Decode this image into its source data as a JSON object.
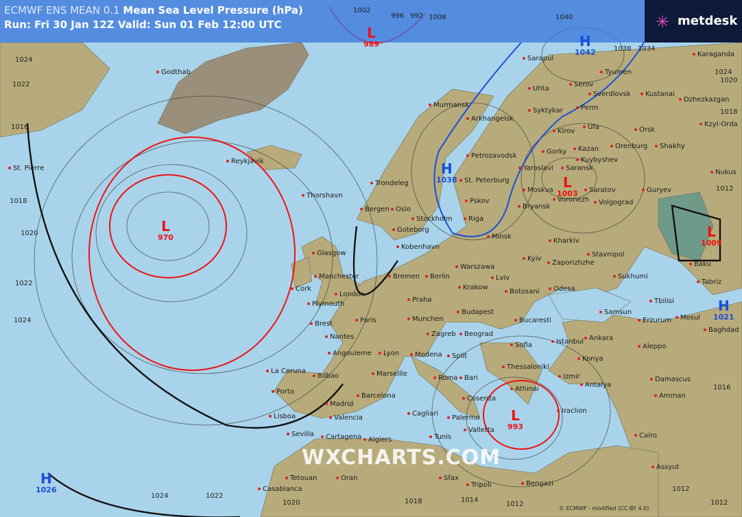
{
  "header": {
    "model": "ECMWF ENS MEAN 0.1",
    "parameter": "Mean Sea Level Pressure (hPa)",
    "run_valid": "Run: Fri 30 Jan 12Z Valid: Sun 01 Feb 12:00 UTC"
  },
  "logo": {
    "text": "metdesk",
    "icon": "metdesk-star-icon",
    "accent": "#e04cc0"
  },
  "watermark": "WXCHARTS.COM",
  "copyright": "© ECMWF - modified (CC-BY 4.0)",
  "colors": {
    "sea": "#a9d3ea",
    "land": "#b5a979",
    "low": "#e11111",
    "high": "#1a4fd8"
  },
  "pressure_centers": [
    {
      "type": "L",
      "value": "989"
    },
    {
      "type": "H",
      "value": "1042"
    },
    {
      "type": "H",
      "value": "1038"
    },
    {
      "type": "L",
      "value": "1003"
    },
    {
      "type": "L",
      "value": "970"
    },
    {
      "type": "L",
      "value": "993"
    },
    {
      "type": "L",
      "value": "1009"
    },
    {
      "type": "H",
      "value": "1021"
    },
    {
      "type": "H",
      "value": "1026"
    }
  ],
  "isobar_labels": [
    "1024",
    "1022",
    "1016",
    "1018",
    "1020",
    "1022",
    "1024",
    "1024",
    "1022",
    "1020",
    "1018",
    "1014",
    "1012",
    "1012",
    "1016",
    "1012",
    "1024",
    "1020",
    "1018",
    "1002",
    "996",
    "992",
    "1008",
    "1040",
    "1038",
    "1034",
    "1012"
  ],
  "cities": [
    "Godthab",
    "Reykjavik",
    "St. Pierre",
    "Thorshavn",
    "Murmansk",
    "Arkhangelsk",
    "Petrozavodsk",
    "St. Peterburg",
    "Sarapul",
    "Uhta",
    "Serov",
    "Tyumen",
    "Syktykar",
    "Perm",
    "Sverdlovsk",
    "Kustanai",
    "Karaganda",
    "Dzhezkazgan",
    "Kzyl-Orda",
    "Kirov",
    "Ufa",
    "Orsk",
    "Gorky",
    "Kazan",
    "Orenburg",
    "Shakhy",
    "Yaroslavl",
    "Kuybyshev",
    "Moskva",
    "Saransk",
    "Saratov",
    "Guryev",
    "Nukus",
    "Trondeleg",
    "Bergen",
    "Oslo",
    "Stockholm",
    "Pskov",
    "Riga",
    "Goteborg",
    "Kobenhavn",
    "Minsk",
    "Bryansk",
    "Voronezh",
    "Volgograd",
    "Kharkiv",
    "Glasgow",
    "Manchester",
    "Cork",
    "Plymouth",
    "London",
    "Bremen",
    "Berlin",
    "Warszawa",
    "Kyiv",
    "Zaporizhzhe",
    "Stavropol",
    "Tbilisi",
    "Baku",
    "Sukhumi",
    "Tabriz",
    "Erzurum",
    "Mosul",
    "Baghdad",
    "Samsun",
    "Krakow",
    "Lviv",
    "Botosani",
    "Odesa",
    "Brest",
    "Nantes",
    "Paris",
    "Praha",
    "Munchen",
    "Budapest",
    "Bucaresti",
    "Zagreb",
    "Beograd",
    "Sofia",
    "Istanbul",
    "Ankara",
    "Aleppo",
    "Konya",
    "Angouleme",
    "Lyon",
    "Modena",
    "Split",
    "Thessaloniki",
    "Izmir",
    "Antalya",
    "Damascus",
    "La Coruna",
    "Bilbao",
    "Marseille",
    "Roma",
    "Bari",
    "Athinai",
    "Amman",
    "Porto",
    "Madrid",
    "Barcelona",
    "Cosenza",
    "Iraclion",
    "Lisboa",
    "Valencia",
    "Cagliari",
    "Palermo",
    "Sevilla",
    "Cartagena",
    "Algiers",
    "Tunis",
    "Valletta",
    "Cairo",
    "Tetouan",
    "Oran",
    "Sfax",
    "Tripoli",
    "Bengazi",
    "Assyut",
    "Casablanca"
  ]
}
